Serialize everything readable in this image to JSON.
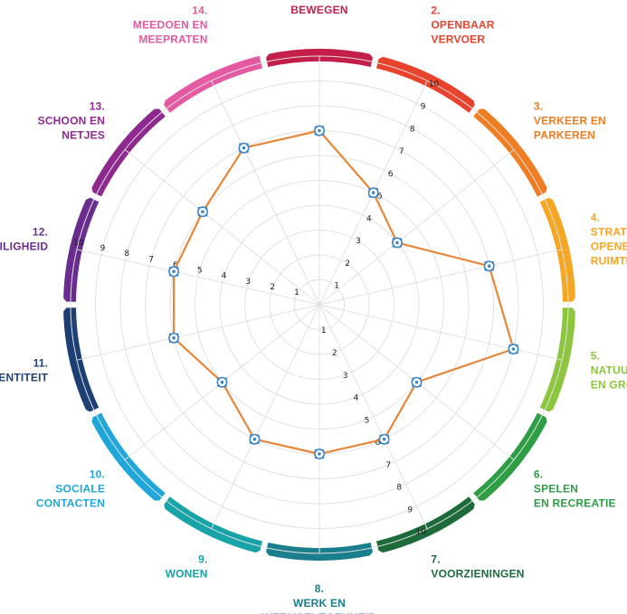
{
  "chart_data": {
    "type": "radar",
    "title": "",
    "range": [
      0,
      10
    ],
    "ticks": [
      1,
      2,
      3,
      4,
      5,
      6,
      7,
      8,
      9,
      10
    ],
    "tick_label_spokes": [
      1,
      6,
      11
    ],
    "grid": true,
    "categories": [
      {
        "lines": [
          "BEWEGEN"
        ],
        "color": "#c41f4c"
      },
      {
        "lines": [
          "2.",
          "OPENBAAR",
          "VERVOER"
        ],
        "color": "#e8432c"
      },
      {
        "lines": [
          "3.",
          "VERKEER EN",
          "PARKEREN"
        ],
        "color": "#ef7d22"
      },
      {
        "lines": [
          "4.",
          "STRATEN EN",
          "OPENBARE",
          "RUIMTES"
        ],
        "color": "#f5a623"
      },
      {
        "lines": [
          "5.",
          "NATUUR",
          "EN GROEN"
        ],
        "color": "#8cc63e"
      },
      {
        "lines": [
          "6.",
          "SPELEN",
          "EN RECREATIE"
        ],
        "color": "#2e9e44"
      },
      {
        "lines": [
          "7.",
          "VOORZIENINGEN"
        ],
        "color": "#1d6b3a"
      },
      {
        "lines": [
          "8.",
          "WERK EN",
          "WERKGELEGENHEID"
        ],
        "color": "#1b7e8c"
      },
      {
        "lines": [
          "9.",
          "WONEN"
        ],
        "color": "#17a3a8"
      },
      {
        "lines": [
          "10.",
          "SOCIALE",
          "CONTACTEN"
        ],
        "color": "#1fa7d9"
      },
      {
        "lines": [
          "11.",
          "DENTITEIT"
        ],
        "color": "#1c3f75"
      },
      {
        "lines": [
          "12.",
          "VEILIGHEID"
        ],
        "color": "#6a2c8e"
      },
      {
        "lines": [
          "13.",
          "SCHOON EN",
          "NETJES"
        ],
        "color": "#8e2a8f"
      },
      {
        "lines": [
          "14.",
          "MEEDOEN EN",
          "MEEPRATEN"
        ],
        "color": "#e35aa3"
      }
    ],
    "series": [
      {
        "values": [
          7,
          5,
          4,
          7,
          8,
          5,
          6,
          6,
          6,
          5,
          6,
          6,
          6,
          7
        ],
        "color": "#e8873a"
      }
    ]
  }
}
